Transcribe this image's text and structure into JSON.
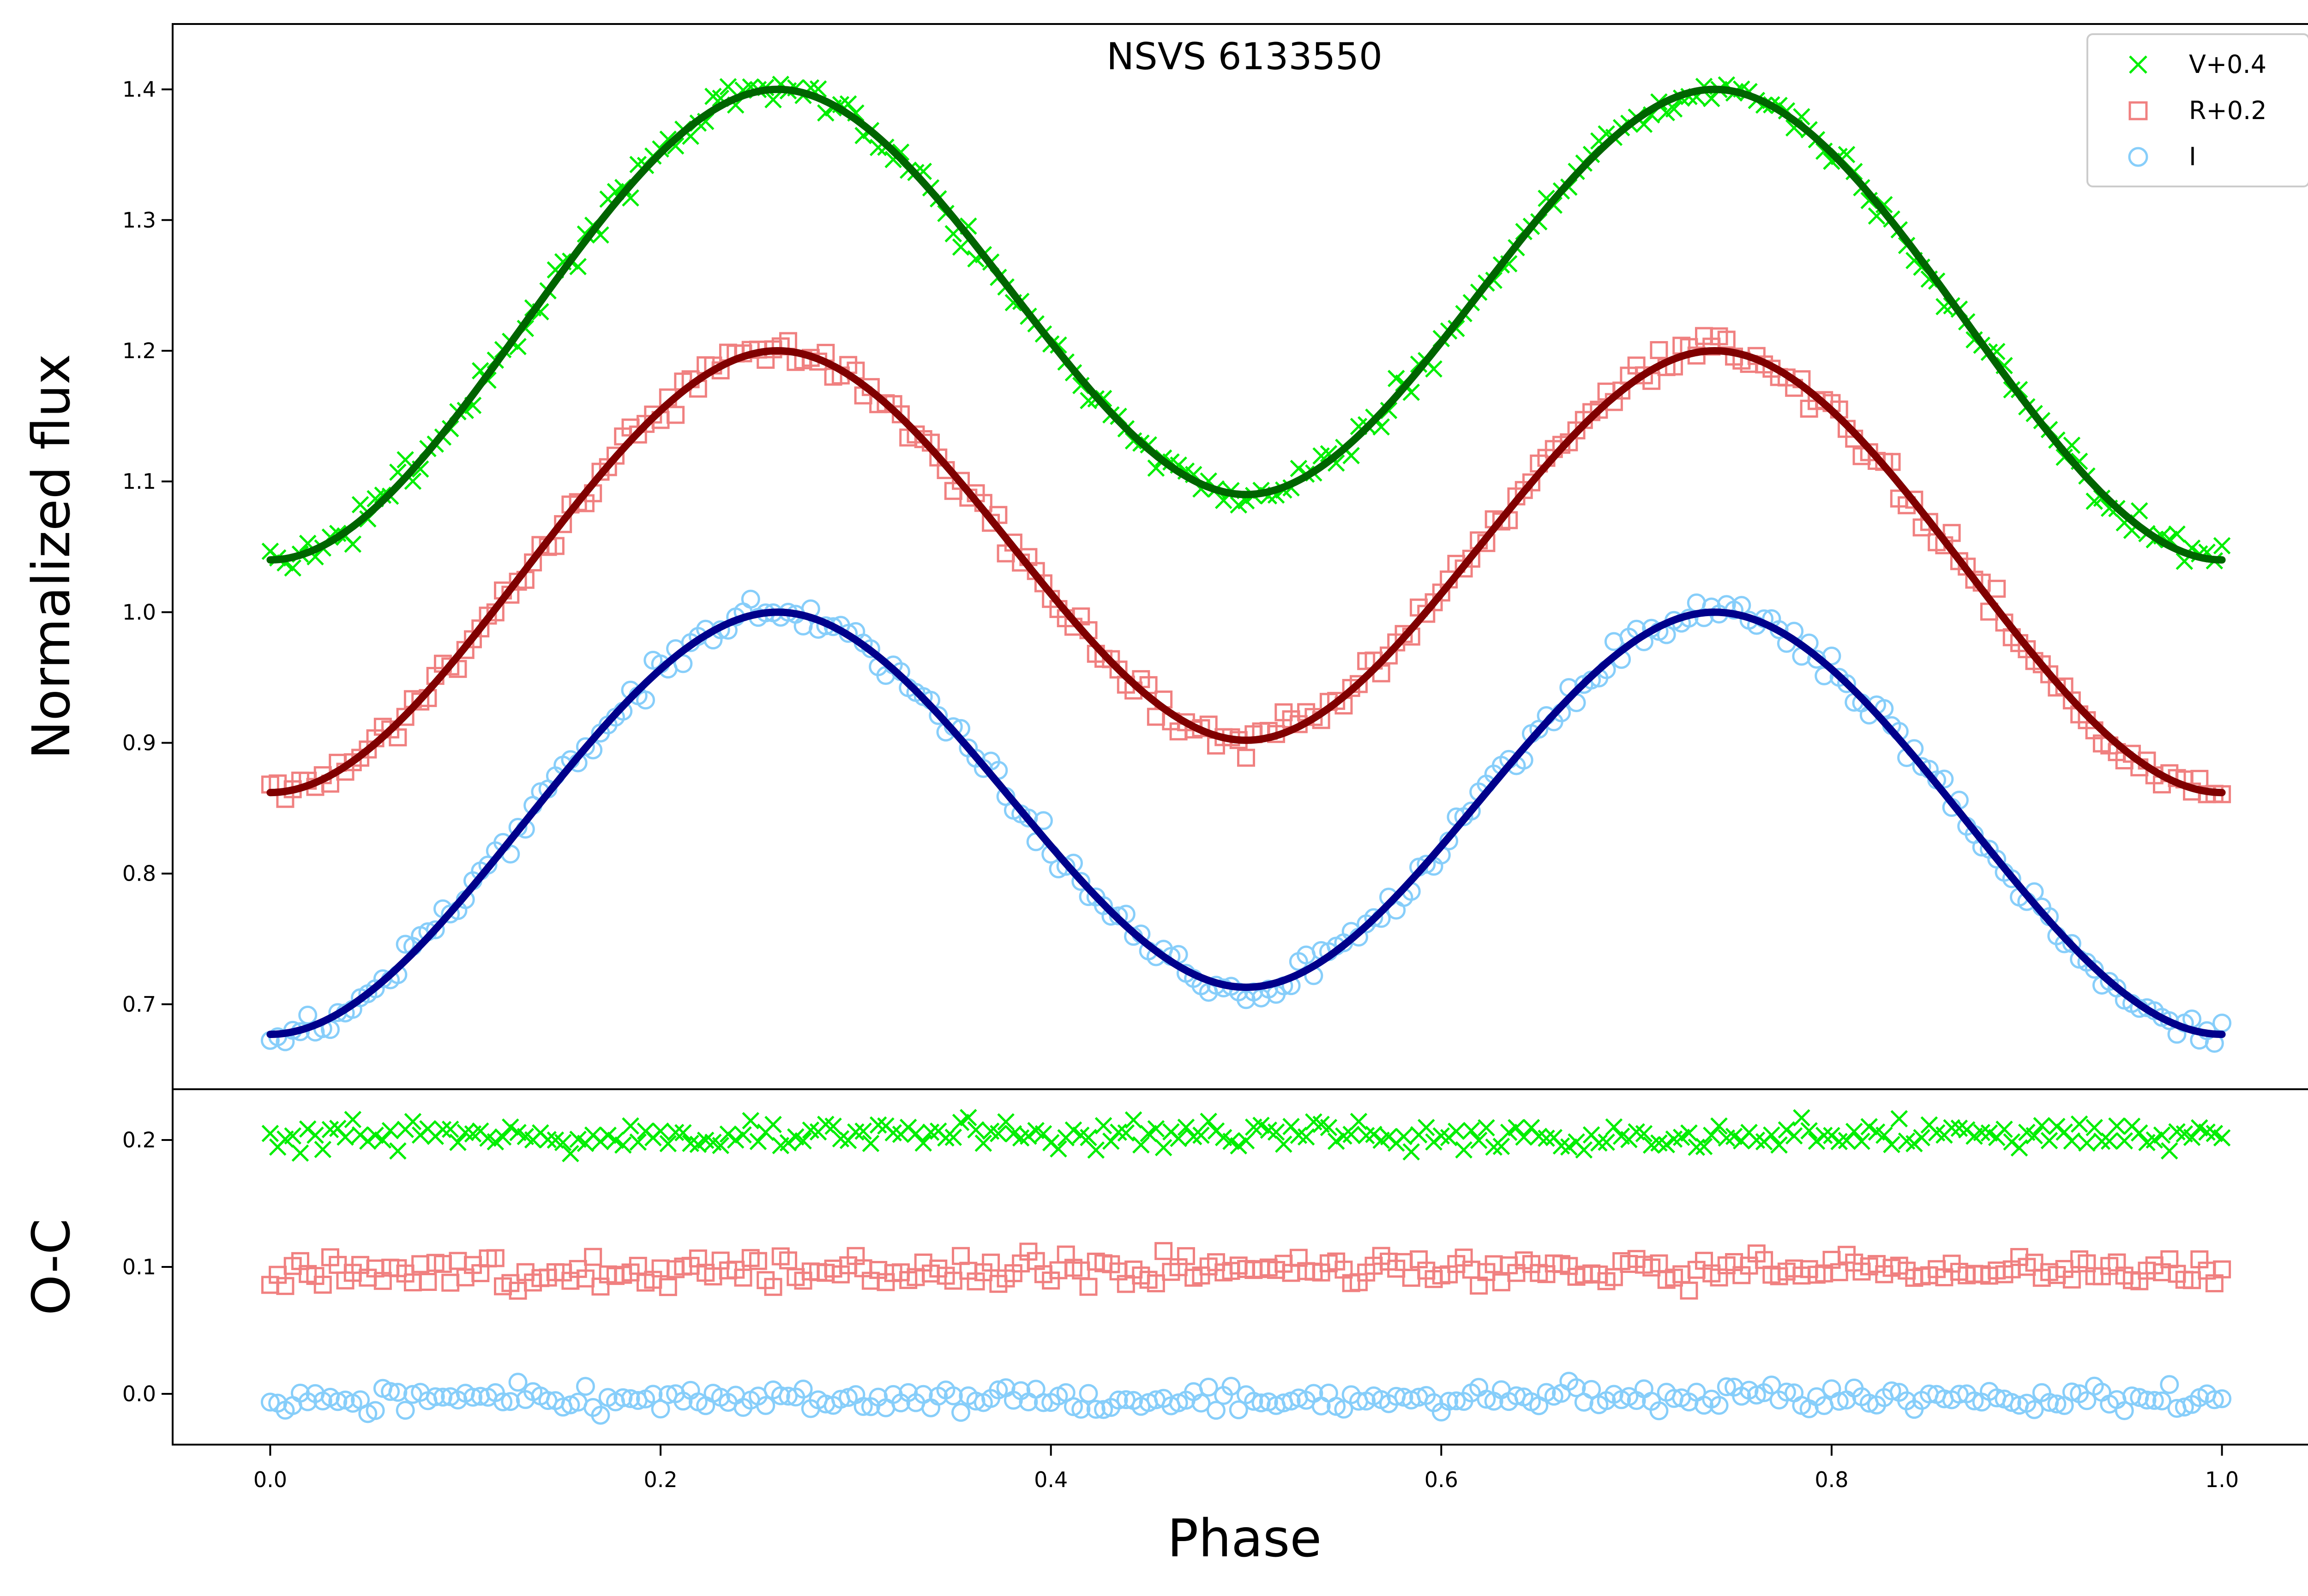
{
  "chart_data": [
    {
      "panel": "top",
      "type": "scatter",
      "title": "NSVS 6133550",
      "ylabel": "Normalized flux",
      "xlabel": "",
      "xlim": [
        -0.05,
        1.05
      ],
      "ylim": [
        0.635,
        1.45
      ],
      "yticks": [
        "0.7",
        "0.8",
        "0.9",
        "1.0",
        "1.1",
        "1.2",
        "1.3",
        "1.4"
      ],
      "legend_position": "top-right",
      "series": [
        {
          "name": "V+0.4",
          "marker": "x",
          "marker_color": "#00ee00",
          "fit_color": "#006400",
          "model": {
            "base": 1.04,
            "max1": 1.4,
            "phase_max1": 0.26,
            "min2": 1.09,
            "max2": 1.4,
            "phase_max2": 0.74
          },
          "noise": 0.006
        },
        {
          "name": "R+0.2",
          "marker": "square",
          "marker_color": "#f08080",
          "fit_color": "#800000",
          "model": {
            "base": 0.862,
            "max1": 1.2,
            "phase_max1": 0.26,
            "min2": 0.902,
            "max2": 1.2,
            "phase_max2": 0.74
          },
          "noise": 0.006
        },
        {
          "name": "I",
          "marker": "circle",
          "marker_color": "#87cefa",
          "fit_color": "#00008b",
          "model": {
            "base": 0.677,
            "max1": 1.0,
            "phase_max1": 0.26,
            "min2": 0.713,
            "max2": 1.0,
            "phase_max2": 0.74
          },
          "noise": 0.006
        }
      ]
    },
    {
      "panel": "bottom",
      "type": "scatter",
      "xlabel": "Phase",
      "ylabel": "O-C",
      "xlim": [
        -0.05,
        1.05
      ],
      "ylim": [
        -0.04,
        0.24
      ],
      "xticks": [
        "0.0",
        "0.2",
        "0.4",
        "0.6",
        "0.8",
        "1.0"
      ],
      "yticks": [
        "0.0",
        "0.1",
        "0.2"
      ],
      "series": [
        {
          "name": "V+0.4",
          "marker": "x",
          "marker_color": "#00ee00",
          "offset": 0.204,
          "noise": 0.006
        },
        {
          "name": "R+0.2",
          "marker": "square",
          "marker_color": "#f08080",
          "offset": 0.097,
          "noise": 0.006
        },
        {
          "name": "I",
          "marker": "circle",
          "marker_color": "#87cefa",
          "offset": -0.004,
          "noise": 0.005
        }
      ]
    }
  ]
}
